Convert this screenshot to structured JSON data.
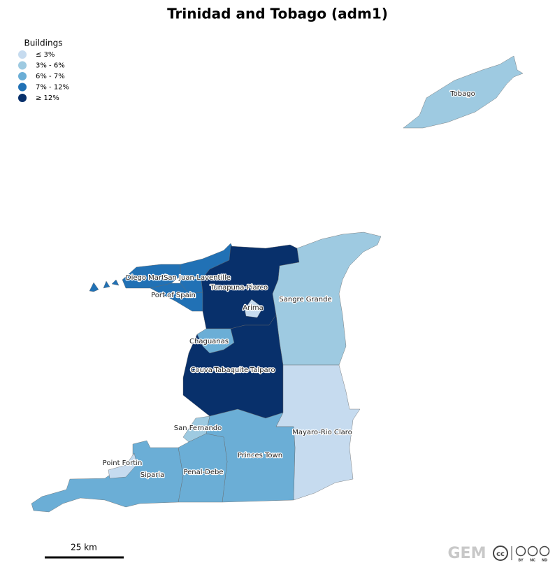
{
  "title": "Trinidad and Tobago (adm1)",
  "legend": {
    "title": "Buildings",
    "items": [
      {
        "label": "≤ 3%",
        "color": "#c6dbef"
      },
      {
        "label": "3% - 6%",
        "color": "#9ecae1"
      },
      {
        "label": "6% - 7%",
        "color": "#6baed6"
      },
      {
        "label": "7% - 12%",
        "color": "#2171b5"
      },
      {
        "label": "≥ 12%",
        "color": "#08306b"
      }
    ]
  },
  "regions": [
    {
      "label": "Tobago",
      "color": "#9ecae1"
    },
    {
      "label": "Diego Martin",
      "color": "#2171b5"
    },
    {
      "label": "San Juan-Laventille",
      "color": "#2171b5"
    },
    {
      "label": "Port of Spain",
      "color": "#2171b5"
    },
    {
      "label": "Tunapuna-Piarco",
      "color": "#08306b"
    },
    {
      "label": "Sangre Grande",
      "color": "#9ecae1"
    },
    {
      "label": "Arima",
      "color": "#c6dbef"
    },
    {
      "label": "Chaguanas",
      "color": "#6baed6"
    },
    {
      "label": "Couva-Tabaquite-Talparo",
      "color": "#08306b"
    },
    {
      "label": "Mayaro-Rio Claro",
      "color": "#c6dbef"
    },
    {
      "label": "San Fernando",
      "color": "#9ecae1"
    },
    {
      "label": "Princes Town",
      "color": "#6baed6"
    },
    {
      "label": "Penal-Debe",
      "color": "#6baed6"
    },
    {
      "label": "Siparia",
      "color": "#6baed6"
    },
    {
      "label": "Point Fortin",
      "color": "#c6dbef"
    }
  ],
  "scale_bar": "25 km",
  "logo": "GEM",
  "license": [
    "cc",
    "BY",
    "NC",
    "ND"
  ]
}
